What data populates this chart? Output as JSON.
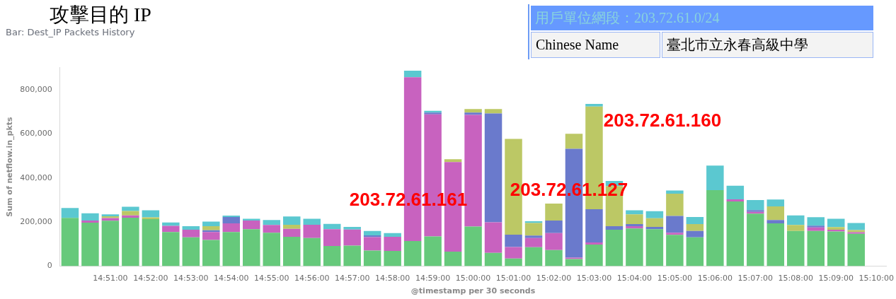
{
  "chart_data": {
    "type": "bar",
    "stacked": true,
    "title": "攻擊目的 IP",
    "subtitle": "Bar: Dest_IP Packets History",
    "xlabel": "@timestamp per 30 seconds",
    "ylabel": "Sum of netflow.in_pkts",
    "categories": [
      null,
      null,
      "14:51:00",
      null,
      "14:52:00",
      null,
      "14:53:00",
      null,
      "14:54:00",
      null,
      "14:55:00",
      null,
      "14:56:00",
      null,
      "14:57:00",
      null,
      "14:58:00",
      null,
      "14:59:00",
      null,
      "15:00:00",
      null,
      "15:01:00",
      null,
      "15:02:00",
      null,
      "15:03:00",
      null,
      "15:04:00",
      null,
      "15:05:00",
      null,
      "15:06:00",
      null,
      "15:07:00",
      null,
      "15:08:00",
      null,
      "15:09:00",
      null,
      "15:10:00"
    ],
    "series": [
      {
        "color": "#66c97b",
        "values": [
          219000,
          197000,
          206000,
          220000,
          213000,
          155000,
          131000,
          119000,
          155000,
          168000,
          152000,
          133000,
          128000,
          92000,
          93000,
          71000,
          69000,
          114000,
          135000,
          66000,
          180000,
          60000,
          35000,
          86000,
          73000,
          32000,
          98000,
          165000,
          171000,
          168000,
          142000,
          131000,
          345000,
          293000,
          238000,
          194000,
          160000,
          160000,
          157000,
          147000,
          null
        ]
      },
      {
        "color": "#c862bf",
        "values": [
          0,
          10000,
          12000,
          10000,
          0,
          28000,
          34000,
          36000,
          39000,
          39000,
          35000,
          36000,
          60000,
          76000,
          73000,
          61000,
          64000,
          742000,
          553000,
          406000,
          506000,
          139000,
          52000,
          42000,
          77000,
          7000,
          10000,
          0,
          10000,
          0,
          10000,
          0,
          0,
          10000,
          8000,
          0,
          0,
          16000,
          8000,
          7000,
          null
        ]
      },
      {
        "color": "#6a7acc",
        "values": [
          0,
          0,
          0,
          0,
          0,
          0,
          0,
          8000,
          29000,
          0,
          0,
          0,
          0,
          0,
          0,
          8000,
          0,
          0,
          8000,
          0,
          10000,
          493000,
          56000,
          11000,
          57000,
          493000,
          150000,
          16000,
          10000,
          10000,
          76000,
          29000,
          0,
          0,
          8000,
          15000,
          0,
          8000,
          0,
          0,
          null
        ]
      },
      {
        "color": "#bcc865",
        "values": [
          0,
          0,
          8000,
          20000,
          8000,
          0,
          0,
          18000,
          0,
          0,
          0,
          19000,
          0,
          0,
          0,
          0,
          0,
          0,
          0,
          13000,
          16000,
          20000,
          434000,
          57000,
          77000,
          68000,
          465000,
          182000,
          44000,
          39000,
          101000,
          31000,
          0,
          0,
          0,
          62000,
          27000,
          0,
          12000,
          10000,
          null
        ]
      },
      {
        "color": "#5bc8d0",
        "values": [
          45000,
          33000,
          9000,
          19000,
          32000,
          15000,
          16000,
          21000,
          6000,
          8000,
          22000,
          37000,
          27000,
          24000,
          12000,
          20000,
          17000,
          30000,
          8000,
          0,
          0,
          0,
          0,
          8000,
          0,
          0,
          12000,
          23000,
          18000,
          32000,
          14000,
          32000,
          111000,
          62000,
          46000,
          31000,
          43000,
          38000,
          38000,
          32000,
          null
        ]
      }
    ],
    "ylim": [
      0,
      900000
    ],
    "yticks": [
      {
        "value": 0,
        "label": "0"
      },
      {
        "value": 200000,
        "label": "200,000"
      },
      {
        "value": 400000,
        "label": "400,000"
      },
      {
        "value": 600000,
        "label": "600,000"
      },
      {
        "value": 800000,
        "label": "800,000"
      }
    ],
    "annotations": [
      "203.72.61.161",
      "203.72.61.127",
      "203.72.61.160",
      "用戶單位網段：203.72.61.0/24",
      "Chinese Name",
      "臺北市立永春高級中學"
    ]
  }
}
